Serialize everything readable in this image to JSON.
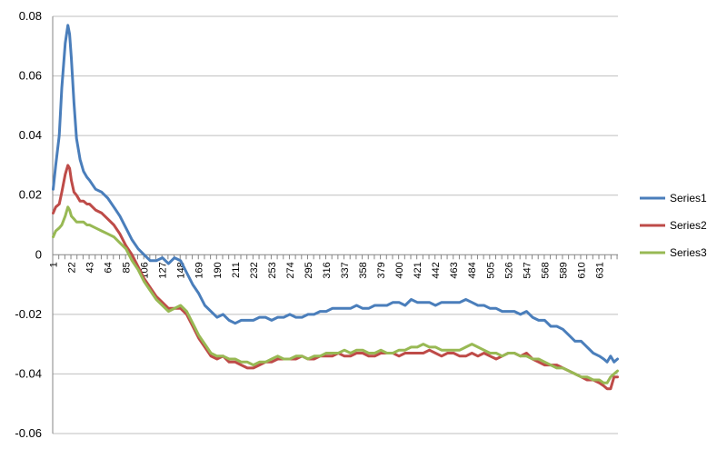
{
  "chart_data": {
    "type": "line",
    "title": "",
    "xlabel": "",
    "ylabel": "",
    "ylim": [
      -0.06,
      0.08
    ],
    "y_ticks": [
      "0.08",
      "0.06",
      "0.04",
      "0.02",
      "0",
      "-0.02",
      "-0.04",
      "-0.06"
    ],
    "y_tick_values": [
      0.08,
      0.06,
      0.04,
      0.02,
      0,
      -0.02,
      -0.04,
      -0.06
    ],
    "x_ticks": [
      "1",
      "22",
      "43",
      "64",
      "85",
      "106",
      "127",
      "148",
      "169",
      "190",
      "211",
      "232",
      "253",
      "274",
      "295",
      "316",
      "337",
      "358",
      "379",
      "400",
      "421",
      "442",
      "463",
      "484",
      "505",
      "526",
      "547",
      "568",
      "589",
      "610",
      "631"
    ],
    "x_tick_values": [
      1,
      22,
      43,
      64,
      85,
      106,
      127,
      148,
      169,
      190,
      211,
      232,
      253,
      274,
      295,
      316,
      337,
      358,
      379,
      400,
      421,
      442,
      463,
      484,
      505,
      526,
      547,
      568,
      589,
      610,
      631
    ],
    "x_range": [
      1,
      652
    ],
    "grid": "horizontal",
    "legend_position": "right",
    "series": [
      {
        "name": "Series1",
        "color": "#4a7ebb",
        "x": [
          1,
          4,
          8,
          11,
          15,
          18,
          20,
          22,
          25,
          28,
          32,
          36,
          40,
          43,
          50,
          57,
          64,
          71,
          78,
          85,
          92,
          99,
          106,
          113,
          120,
          127,
          134,
          141,
          148,
          155,
          162,
          169,
          176,
          183,
          190,
          197,
          204,
          211,
          218,
          225,
          232,
          239,
          246,
          253,
          260,
          267,
          274,
          281,
          288,
          295,
          302,
          309,
          316,
          323,
          330,
          337,
          344,
          351,
          358,
          365,
          372,
          379,
          386,
          393,
          400,
          407,
          414,
          421,
          428,
          435,
          442,
          449,
          456,
          463,
          470,
          477,
          484,
          491,
          498,
          505,
          512,
          519,
          526,
          533,
          540,
          547,
          554,
          561,
          568,
          575,
          582,
          589,
          596,
          603,
          610,
          617,
          624,
          631,
          636,
          640,
          644,
          648,
          652
        ],
        "values": [
          0.022,
          0.03,
          0.04,
          0.056,
          0.071,
          0.077,
          0.074,
          0.066,
          0.051,
          0.039,
          0.032,
          0.028,
          0.026,
          0.025,
          0.022,
          0.021,
          0.019,
          0.016,
          0.013,
          0.009,
          0.005,
          0.002,
          0.0,
          -0.002,
          -0.002,
          -0.001,
          -0.003,
          -0.001,
          -0.002,
          -0.006,
          -0.01,
          -0.013,
          -0.017,
          -0.019,
          -0.021,
          -0.02,
          -0.022,
          -0.023,
          -0.022,
          -0.022,
          -0.022,
          -0.021,
          -0.021,
          -0.022,
          -0.021,
          -0.021,
          -0.02,
          -0.021,
          -0.021,
          -0.02,
          -0.02,
          -0.019,
          -0.019,
          -0.018,
          -0.018,
          -0.018,
          -0.018,
          -0.017,
          -0.018,
          -0.018,
          -0.017,
          -0.017,
          -0.017,
          -0.016,
          -0.016,
          -0.017,
          -0.015,
          -0.016,
          -0.016,
          -0.016,
          -0.017,
          -0.016,
          -0.016,
          -0.016,
          -0.016,
          -0.015,
          -0.016,
          -0.017,
          -0.017,
          -0.018,
          -0.018,
          -0.019,
          -0.019,
          -0.019,
          -0.02,
          -0.019,
          -0.021,
          -0.022,
          -0.022,
          -0.024,
          -0.024,
          -0.025,
          -0.027,
          -0.029,
          -0.029,
          -0.031,
          -0.033,
          -0.034,
          -0.035,
          -0.036,
          -0.034,
          -0.036,
          -0.035
        ]
      },
      {
        "name": "Series2",
        "color": "#be4b48",
        "x": [
          1,
          4,
          8,
          11,
          15,
          18,
          20,
          22,
          25,
          28,
          32,
          36,
          40,
          43,
          50,
          57,
          64,
          71,
          78,
          85,
          92,
          99,
          106,
          113,
          120,
          127,
          134,
          141,
          148,
          155,
          162,
          169,
          176,
          183,
          190,
          197,
          204,
          211,
          218,
          225,
          232,
          239,
          246,
          253,
          260,
          267,
          274,
          281,
          288,
          295,
          302,
          309,
          316,
          323,
          330,
          337,
          344,
          351,
          358,
          365,
          372,
          379,
          386,
          393,
          400,
          407,
          414,
          421,
          428,
          435,
          442,
          449,
          456,
          463,
          470,
          477,
          484,
          491,
          498,
          505,
          512,
          519,
          526,
          533,
          540,
          547,
          554,
          561,
          568,
          575,
          582,
          589,
          596,
          603,
          610,
          617,
          624,
          631,
          636,
          640,
          644,
          648,
          652
        ],
        "values": [
          0.014,
          0.016,
          0.017,
          0.021,
          0.027,
          0.03,
          0.029,
          0.025,
          0.021,
          0.02,
          0.018,
          0.018,
          0.017,
          0.017,
          0.015,
          0.014,
          0.012,
          0.01,
          0.007,
          0.003,
          0.0,
          -0.004,
          -0.008,
          -0.011,
          -0.014,
          -0.016,
          -0.018,
          -0.018,
          -0.018,
          -0.02,
          -0.024,
          -0.028,
          -0.031,
          -0.034,
          -0.035,
          -0.034,
          -0.036,
          -0.036,
          -0.037,
          -0.038,
          -0.038,
          -0.037,
          -0.036,
          -0.036,
          -0.035,
          -0.035,
          -0.035,
          -0.035,
          -0.034,
          -0.035,
          -0.035,
          -0.034,
          -0.034,
          -0.034,
          -0.033,
          -0.034,
          -0.034,
          -0.033,
          -0.033,
          -0.034,
          -0.034,
          -0.033,
          -0.033,
          -0.033,
          -0.034,
          -0.033,
          -0.033,
          -0.033,
          -0.033,
          -0.032,
          -0.033,
          -0.034,
          -0.033,
          -0.033,
          -0.034,
          -0.034,
          -0.033,
          -0.034,
          -0.033,
          -0.034,
          -0.035,
          -0.034,
          -0.033,
          -0.033,
          -0.034,
          -0.033,
          -0.035,
          -0.036,
          -0.037,
          -0.037,
          -0.037,
          -0.038,
          -0.039,
          -0.04,
          -0.041,
          -0.042,
          -0.042,
          -0.043,
          -0.044,
          -0.045,
          -0.045,
          -0.041,
          -0.041
        ]
      },
      {
        "name": "Series3",
        "color": "#98b954",
        "x": [
          1,
          4,
          8,
          11,
          15,
          18,
          20,
          22,
          25,
          28,
          32,
          36,
          40,
          43,
          50,
          57,
          64,
          71,
          78,
          85,
          92,
          99,
          106,
          113,
          120,
          127,
          134,
          141,
          148,
          155,
          162,
          169,
          176,
          183,
          190,
          197,
          204,
          211,
          218,
          225,
          232,
          239,
          246,
          253,
          260,
          267,
          274,
          281,
          288,
          295,
          302,
          309,
          316,
          323,
          330,
          337,
          344,
          351,
          358,
          365,
          372,
          379,
          386,
          393,
          400,
          407,
          414,
          421,
          428,
          435,
          442,
          449,
          456,
          463,
          470,
          477,
          484,
          491,
          498,
          505,
          512,
          519,
          526,
          533,
          540,
          547,
          554,
          561,
          568,
          575,
          582,
          589,
          596,
          603,
          610,
          617,
          624,
          631,
          636,
          640,
          644,
          648,
          652
        ],
        "values": [
          0.006,
          0.008,
          0.009,
          0.01,
          0.013,
          0.016,
          0.015,
          0.013,
          0.012,
          0.011,
          0.011,
          0.011,
          0.01,
          0.01,
          0.009,
          0.008,
          0.007,
          0.006,
          0.004,
          0.002,
          -0.002,
          -0.005,
          -0.009,
          -0.012,
          -0.015,
          -0.017,
          -0.019,
          -0.018,
          -0.017,
          -0.019,
          -0.023,
          -0.027,
          -0.03,
          -0.033,
          -0.034,
          -0.034,
          -0.035,
          -0.035,
          -0.036,
          -0.036,
          -0.037,
          -0.036,
          -0.036,
          -0.035,
          -0.034,
          -0.035,
          -0.035,
          -0.034,
          -0.034,
          -0.035,
          -0.034,
          -0.034,
          -0.033,
          -0.033,
          -0.033,
          -0.032,
          -0.033,
          -0.032,
          -0.032,
          -0.033,
          -0.033,
          -0.032,
          -0.033,
          -0.033,
          -0.032,
          -0.032,
          -0.031,
          -0.031,
          -0.03,
          -0.031,
          -0.031,
          -0.032,
          -0.032,
          -0.032,
          -0.032,
          -0.031,
          -0.03,
          -0.031,
          -0.032,
          -0.033,
          -0.033,
          -0.034,
          -0.033,
          -0.033,
          -0.034,
          -0.034,
          -0.035,
          -0.035,
          -0.036,
          -0.037,
          -0.038,
          -0.038,
          -0.039,
          -0.04,
          -0.041,
          -0.041,
          -0.042,
          -0.042,
          -0.043,
          -0.043,
          -0.041,
          -0.04,
          -0.039
        ]
      }
    ]
  }
}
